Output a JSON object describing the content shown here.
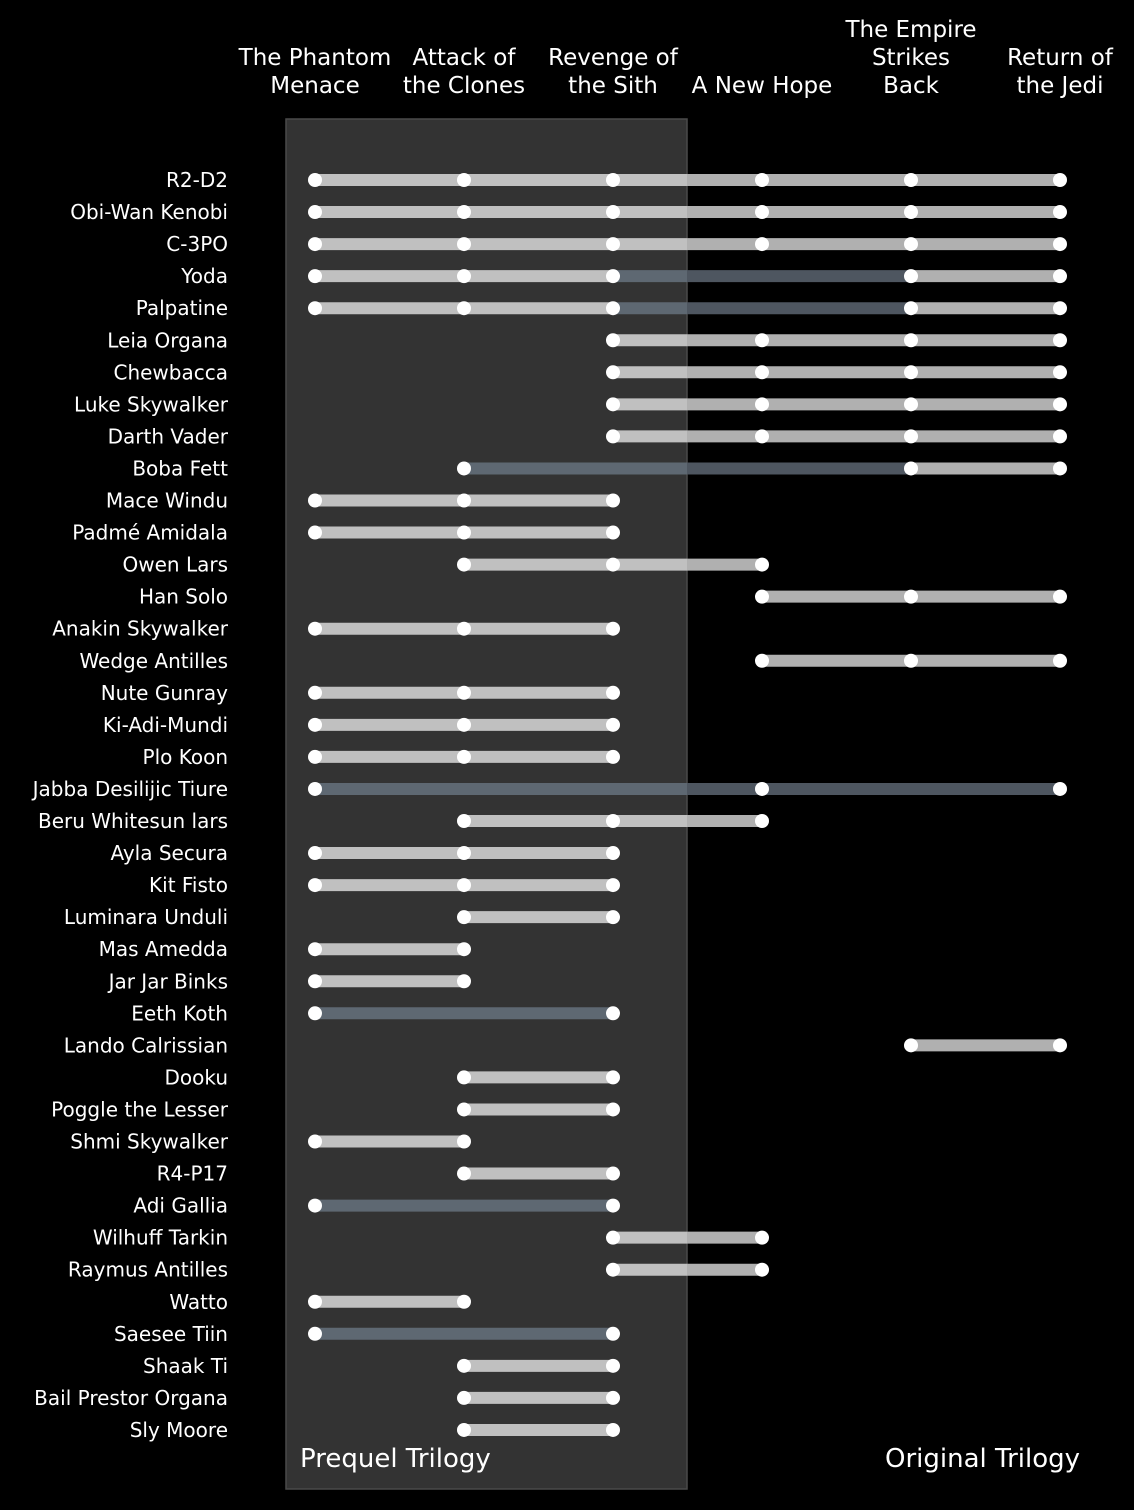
{
  "chart_data": {
    "type": "dot-range",
    "films": [
      [
        "The Phantom",
        "Menace"
      ],
      [
        "Attack of",
        "the Clones"
      ],
      [
        "Revenge of",
        "the Sith"
      ],
      [
        "A New Hope"
      ],
      [
        "The Empire",
        "Strikes",
        "Back"
      ],
      [
        "Return of",
        "the Jedi"
      ]
    ],
    "trilogies": [
      {
        "name": "Prequel Trilogy",
        "films": [
          0,
          1,
          2
        ],
        "shaded": true
      },
      {
        "name": "Original Trilogy",
        "films": [
          3,
          4,
          5
        ],
        "shaded": false
      }
    ],
    "characters": [
      {
        "name": "R2-D2",
        "films": [
          0,
          1,
          2,
          3,
          4,
          5
        ]
      },
      {
        "name": "Obi-Wan Kenobi",
        "films": [
          0,
          1,
          2,
          3,
          4,
          5
        ]
      },
      {
        "name": "C-3PO",
        "films": [
          0,
          1,
          2,
          3,
          4,
          5
        ]
      },
      {
        "name": "Yoda",
        "films": [
          0,
          1,
          2,
          4,
          5
        ]
      },
      {
        "name": "Palpatine",
        "films": [
          0,
          1,
          2,
          4,
          5
        ]
      },
      {
        "name": "Leia Organa",
        "films": [
          2,
          3,
          4,
          5
        ]
      },
      {
        "name": "Chewbacca",
        "films": [
          2,
          3,
          4,
          5
        ]
      },
      {
        "name": "Luke Skywalker",
        "films": [
          2,
          3,
          4,
          5
        ]
      },
      {
        "name": "Darth Vader",
        "films": [
          2,
          3,
          4,
          5
        ]
      },
      {
        "name": "Boba Fett",
        "films": [
          1,
          4,
          5
        ]
      },
      {
        "name": "Mace Windu",
        "films": [
          0,
          1,
          2
        ]
      },
      {
        "name": "Padmé Amidala",
        "films": [
          0,
          1,
          2
        ]
      },
      {
        "name": "Owen Lars",
        "films": [
          1,
          2,
          3
        ]
      },
      {
        "name": "Han Solo",
        "films": [
          3,
          4,
          5
        ]
      },
      {
        "name": "Anakin Skywalker",
        "films": [
          0,
          1,
          2
        ]
      },
      {
        "name": "Wedge Antilles",
        "films": [
          3,
          4,
          5
        ]
      },
      {
        "name": "Nute Gunray",
        "films": [
          0,
          1,
          2
        ]
      },
      {
        "name": "Ki-Adi-Mundi",
        "films": [
          0,
          1,
          2
        ]
      },
      {
        "name": "Plo Koon",
        "films": [
          0,
          1,
          2
        ]
      },
      {
        "name": "Jabba Desilijic Tiure",
        "films": [
          0,
          3,
          5
        ]
      },
      {
        "name": "Beru Whitesun lars",
        "films": [
          1,
          2,
          3
        ]
      },
      {
        "name": "Ayla Secura",
        "films": [
          0,
          1,
          2
        ]
      },
      {
        "name": "Kit Fisto",
        "films": [
          0,
          1,
          2
        ]
      },
      {
        "name": "Luminara Unduli",
        "films": [
          1,
          2
        ]
      },
      {
        "name": "Mas Amedda",
        "films": [
          0,
          1
        ]
      },
      {
        "name": "Jar Jar Binks",
        "films": [
          0,
          1
        ]
      },
      {
        "name": "Eeth Koth",
        "films": [
          0,
          2
        ]
      },
      {
        "name": "Lando Calrissian",
        "films": [
          4,
          5
        ]
      },
      {
        "name": "Dooku",
        "films": [
          1,
          2
        ]
      },
      {
        "name": "Poggle the Lesser",
        "films": [
          1,
          2
        ]
      },
      {
        "name": "Shmi Skywalker",
        "films": [
          0,
          1
        ]
      },
      {
        "name": "R4-P17",
        "films": [
          1,
          2
        ]
      },
      {
        "name": "Adi Gallia",
        "films": [
          0,
          2
        ]
      },
      {
        "name": "Wilhuff Tarkin",
        "films": [
          2,
          3
        ]
      },
      {
        "name": "Raymus Antilles",
        "films": [
          2,
          3
        ]
      },
      {
        "name": "Watto",
        "films": [
          0,
          1
        ]
      },
      {
        "name": "Saesee Tiin",
        "films": [
          0,
          2
        ]
      },
      {
        "name": "Shaak Ti",
        "films": [
          1,
          2
        ]
      },
      {
        "name": "Bail Prestor Organa",
        "films": [
          1,
          2
        ]
      },
      {
        "name": "Sly Moore",
        "films": [
          1,
          2
        ]
      }
    ],
    "colors": {
      "background": "#000000",
      "prequel_shade": "#333333",
      "bar_present": "#c0c0c0",
      "bar_present_original": "#b0b0b0",
      "bar_gap_prequel": "#5e6872",
      "bar_gap_original": "#4e5660",
      "dot": "#ffffff",
      "text": "#ffffff"
    },
    "grid": false,
    "legend": "none"
  }
}
